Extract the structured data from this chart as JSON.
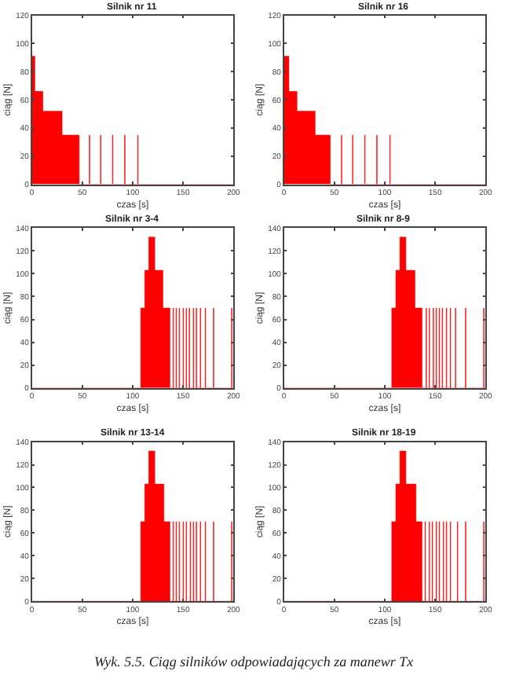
{
  "chart_data": [
    {
      "type": "area",
      "title": "Silnik nr 11",
      "xlabel": "czas [s]",
      "ylabel": "ciąg [N]",
      "color": "#ff0000",
      "xlim": [
        0,
        200
      ],
      "ylim": [
        0,
        120
      ],
      "xticks": [
        0,
        50,
        100,
        150,
        200
      ],
      "yticks": [
        0,
        20,
        40,
        60,
        80,
        100,
        120
      ],
      "x": [
        0,
        3,
        11,
        30,
        47,
        57,
        57.5,
        68,
        68.5,
        80,
        80.5,
        92,
        92.5,
        105,
        105.5,
        200
      ],
      "values": [
        91,
        66,
        52,
        35,
        0,
        35,
        0,
        35,
        0,
        35,
        0,
        35,
        0,
        35,
        0,
        0
      ]
    },
    {
      "type": "area",
      "title": "Silnik nr 16",
      "xlabel": "czas [s]",
      "ylabel": "ciąg [N]",
      "color": "#ff0000",
      "xlim": [
        0,
        200
      ],
      "ylim": [
        0,
        120
      ],
      "xticks": [
        0,
        50,
        100,
        150,
        200
      ],
      "yticks": [
        0,
        20,
        40,
        60,
        80,
        100,
        120
      ],
      "x": [
        0,
        5,
        13,
        31,
        46,
        57,
        57.5,
        68,
        68.5,
        80,
        80.5,
        92,
        92.5,
        105,
        105.5,
        200
      ],
      "values": [
        91,
        66,
        52,
        35,
        0,
        35,
        0,
        35,
        0,
        35,
        0,
        35,
        0,
        35,
        0,
        0
      ]
    },
    {
      "type": "area",
      "title": "Silnik nr 3-4",
      "xlabel": "czas [s]",
      "ylabel": "ciąg [N]",
      "color": "#ff0000",
      "xlim": [
        0,
        200
      ],
      "ylim": [
        0,
        140
      ],
      "xticks": [
        0,
        50,
        100,
        150,
        200
      ],
      "yticks": [
        0,
        20,
        40,
        60,
        80,
        100,
        120,
        140
      ],
      "x": [
        0,
        108,
        112,
        116,
        122,
        130,
        137,
        140,
        140.5,
        143,
        143.5,
        146,
        146.5,
        150,
        150.5,
        153,
        153.5,
        156,
        156.5,
        160,
        160.5,
        163,
        163.5,
        167,
        167.5,
        172,
        172.5,
        180,
        180.5,
        198,
        198.5,
        200
      ],
      "values": [
        0,
        70,
        103,
        132,
        103,
        70,
        0,
        70,
        0,
        70,
        0,
        70,
        0,
        70,
        0,
        70,
        0,
        70,
        0,
        70,
        0,
        70,
        0,
        70,
        0,
        70,
        0,
        70,
        0,
        70,
        0,
        0
      ]
    },
    {
      "type": "area",
      "title": "Silnik nr 8-9",
      "xlabel": "czas [s]",
      "ylabel": "ciąg [N]",
      "color": "#ff0000",
      "xlim": [
        0,
        200
      ],
      "ylim": [
        0,
        140
      ],
      "xticks": [
        0,
        50,
        100,
        150,
        200
      ],
      "yticks": [
        0,
        20,
        40,
        60,
        80,
        100,
        120,
        140
      ],
      "x": [
        0,
        107,
        111,
        115,
        121,
        130,
        137,
        141,
        141.5,
        144,
        144.5,
        148,
        148.5,
        151,
        151.5,
        154,
        154.5,
        157,
        157.5,
        161,
        161.5,
        165,
        165.5,
        170,
        170.5,
        180,
        180.5,
        198,
        198.5,
        200
      ],
      "values": [
        0,
        70,
        103,
        132,
        103,
        70,
        0,
        70,
        0,
        70,
        0,
        70,
        0,
        70,
        0,
        70,
        0,
        70,
        0,
        70,
        0,
        70,
        0,
        70,
        0,
        70,
        0,
        70,
        0,
        0
      ]
    },
    {
      "type": "area",
      "title": "Silnik nr 13-14",
      "xlabel": "czas [s]",
      "ylabel": "ciąg [N]",
      "color": "#ff0000",
      "xlim": [
        0,
        200
      ],
      "ylim": [
        0,
        140
      ],
      "xticks": [
        0,
        50,
        100,
        150,
        200
      ],
      "yticks": [
        0,
        20,
        40,
        60,
        80,
        100,
        120,
        140
      ],
      "x": [
        0,
        108,
        112,
        116,
        122,
        131,
        137,
        140,
        140.5,
        143,
        143.5,
        146,
        146.5,
        150,
        150.5,
        153,
        153.5,
        157,
        157.5,
        160,
        160.5,
        163,
        163.5,
        167,
        167.5,
        172,
        172.5,
        180,
        180.5,
        198,
        198.5,
        200
      ],
      "values": [
        0,
        70,
        103,
        132,
        103,
        70,
        0,
        70,
        0,
        70,
        0,
        70,
        0,
        70,
        0,
        70,
        0,
        70,
        0,
        70,
        0,
        70,
        0,
        70,
        0,
        70,
        0,
        70,
        0,
        70,
        0,
        0
      ]
    },
    {
      "type": "area",
      "title": "Silnik nr 18-19",
      "xlabel": "czas [s]",
      "ylabel": "ciąg [N]",
      "color": "#ff0000",
      "xlim": [
        0,
        200
      ],
      "ylim": [
        0,
        140
      ],
      "xticks": [
        0,
        50,
        100,
        150,
        200
      ],
      "yticks": [
        0,
        20,
        40,
        60,
        80,
        100,
        120,
        140
      ],
      "x": [
        0,
        107,
        111,
        115,
        121,
        131,
        137,
        140,
        140.5,
        144,
        144.5,
        147,
        147.5,
        151,
        151.5,
        154,
        154.5,
        158,
        158.5,
        161,
        161.5,
        165,
        165.5,
        172,
        172.5,
        180,
        180.5,
        198,
        198.5,
        200
      ],
      "values": [
        0,
        70,
        103,
        132,
        103,
        70,
        0,
        70,
        0,
        70,
        0,
        70,
        0,
        70,
        0,
        70,
        0,
        70,
        0,
        70,
        0,
        70,
        0,
        70,
        0,
        70,
        0,
        70,
        0,
        0
      ],
      "annotations": [
        "Wyk. 5.5. Ciąg silników odpowiadających za manewr Tx"
      ]
    }
  ]
}
